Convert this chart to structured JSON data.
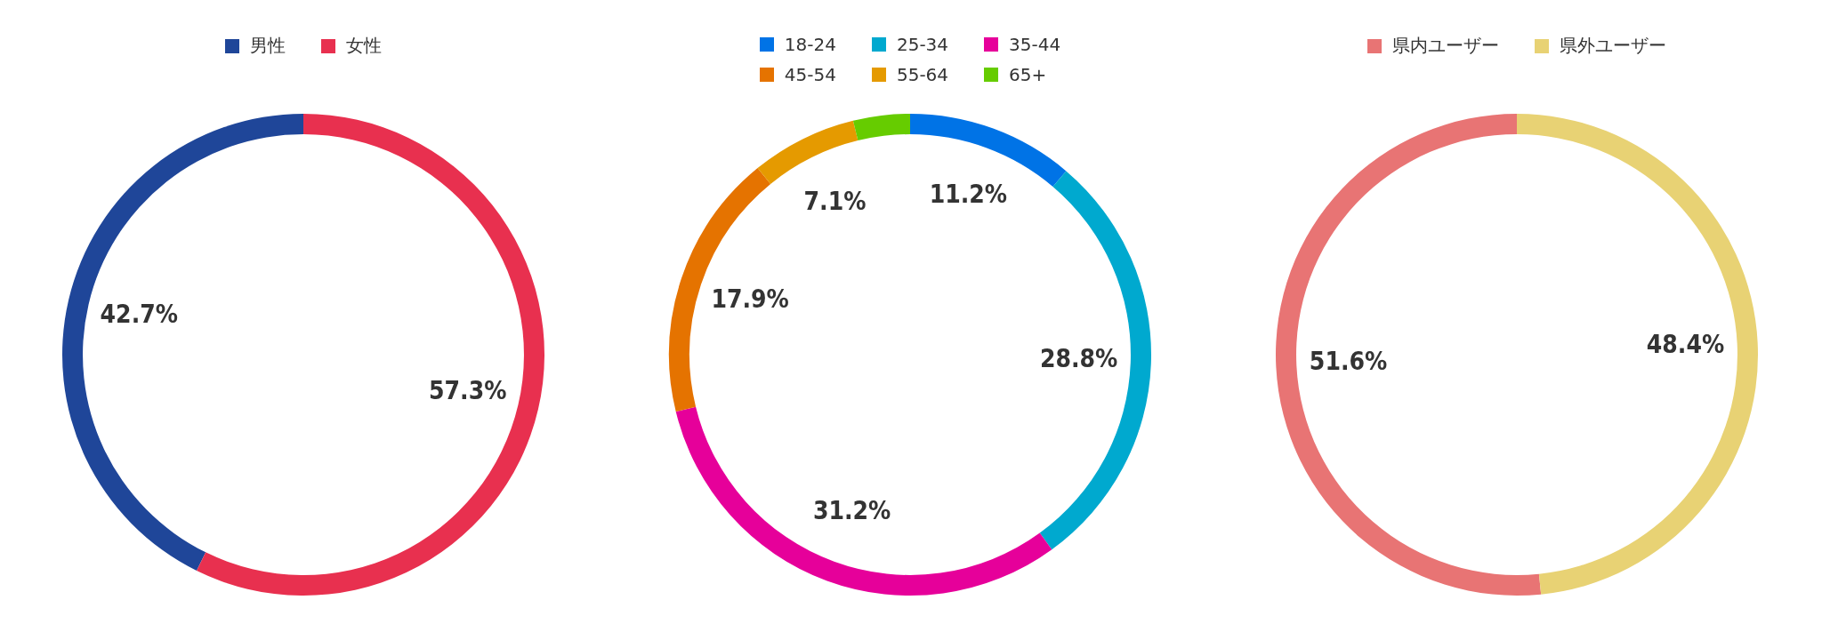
{
  "chart_data": [
    {
      "type": "donut",
      "categories": [
        "男性",
        "女性"
      ],
      "values": [
        42.7,
        57.3
      ],
      "colors": [
        "#1f4699",
        "#e8304f"
      ],
      "value_labels": [
        "42.7%",
        "57.3%"
      ],
      "legend": "top"
    },
    {
      "type": "donut",
      "categories": [
        "18-24",
        "25-34",
        "35-44",
        "45-54",
        "55-64",
        "65+"
      ],
      "values": [
        11.2,
        28.8,
        31.2,
        17.9,
        7.1,
        3.8
      ],
      "colors": [
        "#0073e6",
        "#00a9cf",
        "#e6009a",
        "#e57300",
        "#e59a00",
        "#66cc00"
      ],
      "value_labels": [
        "11.2%",
        "28.8%",
        "31.2%",
        "17.9%",
        "7.1%",
        null
      ],
      "legend": "top"
    },
    {
      "type": "donut",
      "categories": [
        "県内ユーザー",
        "県外ユーザー"
      ],
      "values": [
        51.6,
        48.4
      ],
      "colors": [
        "#e87474",
        "#e8d274"
      ],
      "value_labels": [
        "51.6%",
        "48.4%"
      ],
      "legend": "top"
    }
  ]
}
